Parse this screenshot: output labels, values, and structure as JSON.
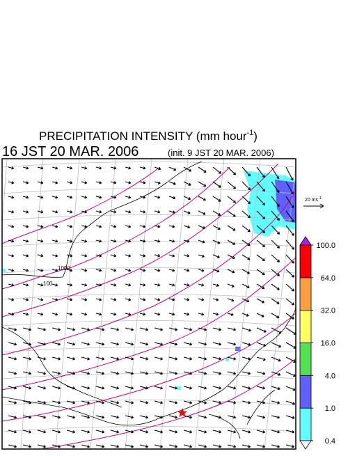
{
  "header": {
    "title_main": "PRECIPITATION INTENSITY (mm hour",
    "title_sup": "-1",
    "title_end": ")",
    "valid_time": "16 JST 20 MAR. 2006",
    "init_time": "(init. 9 JST 20 MAR. 2006)"
  },
  "map": {
    "contour_labels": [
      "1000",
      "100"
    ],
    "reference_arrow": {
      "label": "20 ms",
      "label_sup": "-1"
    }
  },
  "colorbar": {
    "levels": [
      {
        "value": 0.4,
        "label": "0.4"
      },
      {
        "value": 1,
        "label": "1.0"
      },
      {
        "value": 4,
        "label": "4.0"
      },
      {
        "value": 16,
        "label": "16.0"
      },
      {
        "value": 32,
        "label": "32.0"
      },
      {
        "value": 64,
        "label": "64.0"
      },
      {
        "value": 100,
        "label": "100.0"
      }
    ],
    "colors": [
      "#60ffff",
      "#6060ff",
      "#50e050",
      "#ffff60",
      "#ffa040",
      "#ff0000"
    ],
    "under_color": "#ffffff",
    "over_color": "#a020f0"
  }
}
